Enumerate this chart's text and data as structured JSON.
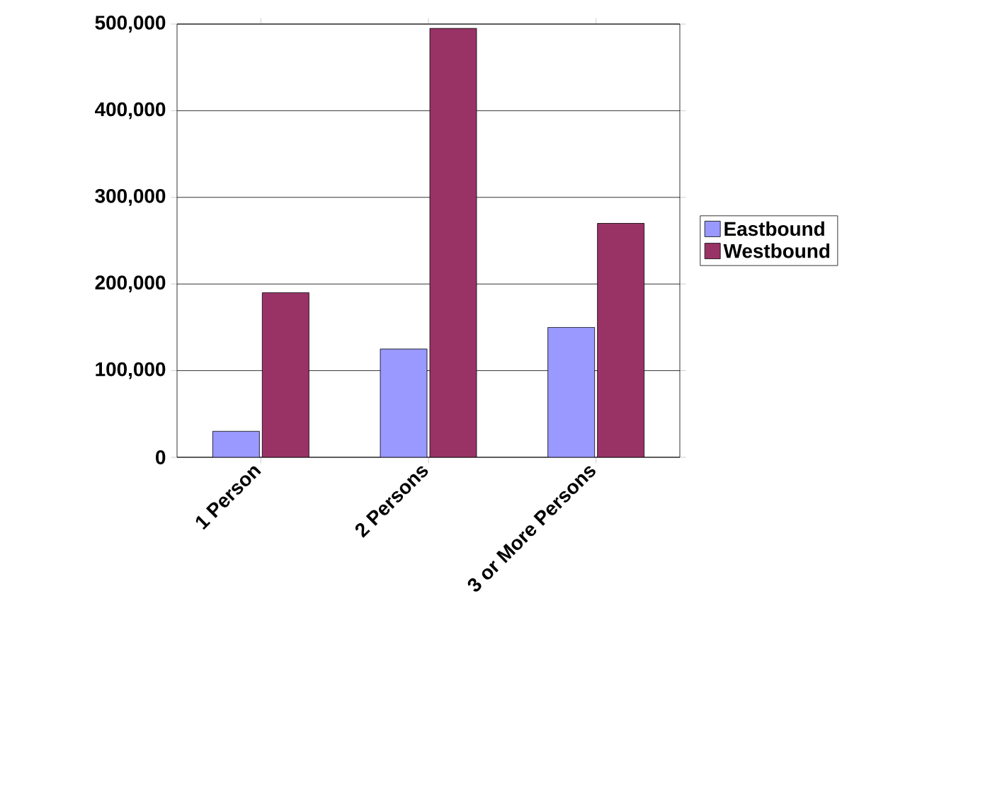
{
  "chart_data": {
    "type": "bar",
    "categories": [
      "1 Person",
      "2 Persons",
      "3 or More Persons"
    ],
    "series": [
      {
        "name": "Eastbound",
        "color": "#9999ff",
        "values": [
          30000,
          125000,
          150000
        ]
      },
      {
        "name": "Westbound",
        "color": "#993366",
        "values": [
          190000,
          495000,
          270000
        ]
      }
    ],
    "ylim": [
      0,
      500000
    ],
    "yticks": [
      {
        "value": 0,
        "label": "0"
      },
      {
        "value": 100000,
        "label": "100,000"
      },
      {
        "value": 200000,
        "label": "200,000"
      },
      {
        "value": 300000,
        "label": "300,000"
      },
      {
        "value": 400000,
        "label": "400,000"
      },
      {
        "value": 500000,
        "label": "500,000"
      }
    ],
    "grid": "y",
    "legend": "right"
  }
}
